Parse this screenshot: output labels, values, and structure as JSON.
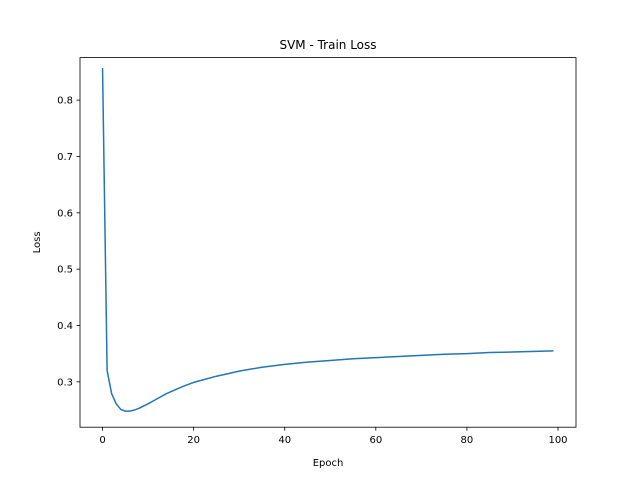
{
  "chart_data": {
    "type": "line",
    "title": "SVM - Train Loss",
    "xlabel": "Epoch",
    "ylabel": "Loss",
    "xlim": [
      -4.95,
      103.95
    ],
    "ylim": [
      0.2195,
      0.8755
    ],
    "xticks": [
      0,
      20,
      40,
      60,
      80,
      100
    ],
    "yticks": [
      0.3,
      0.4,
      0.5,
      0.6,
      0.7,
      0.8
    ],
    "ytick_labels": [
      "0.3",
      "0.4",
      "0.5",
      "0.6",
      "0.7",
      "0.8"
    ],
    "grid": false,
    "color": "#1f77b4",
    "series": [
      {
        "x": [
          0,
          1,
          2,
          3,
          4,
          5,
          6,
          7,
          8,
          9,
          10,
          12,
          14,
          16,
          18,
          20,
          25,
          30,
          35,
          40,
          45,
          50,
          55,
          60,
          65,
          70,
          75,
          80,
          85,
          90,
          95,
          99
        ],
        "y": [
          0.857,
          0.32,
          0.279,
          0.261,
          0.251,
          0.248,
          0.248,
          0.25,
          0.253,
          0.257,
          0.261,
          0.27,
          0.279,
          0.286,
          0.293,
          0.299,
          0.31,
          0.319,
          0.326,
          0.331,
          0.335,
          0.338,
          0.341,
          0.343,
          0.345,
          0.347,
          0.349,
          0.35,
          0.352,
          0.353,
          0.354,
          0.355
        ]
      }
    ]
  }
}
